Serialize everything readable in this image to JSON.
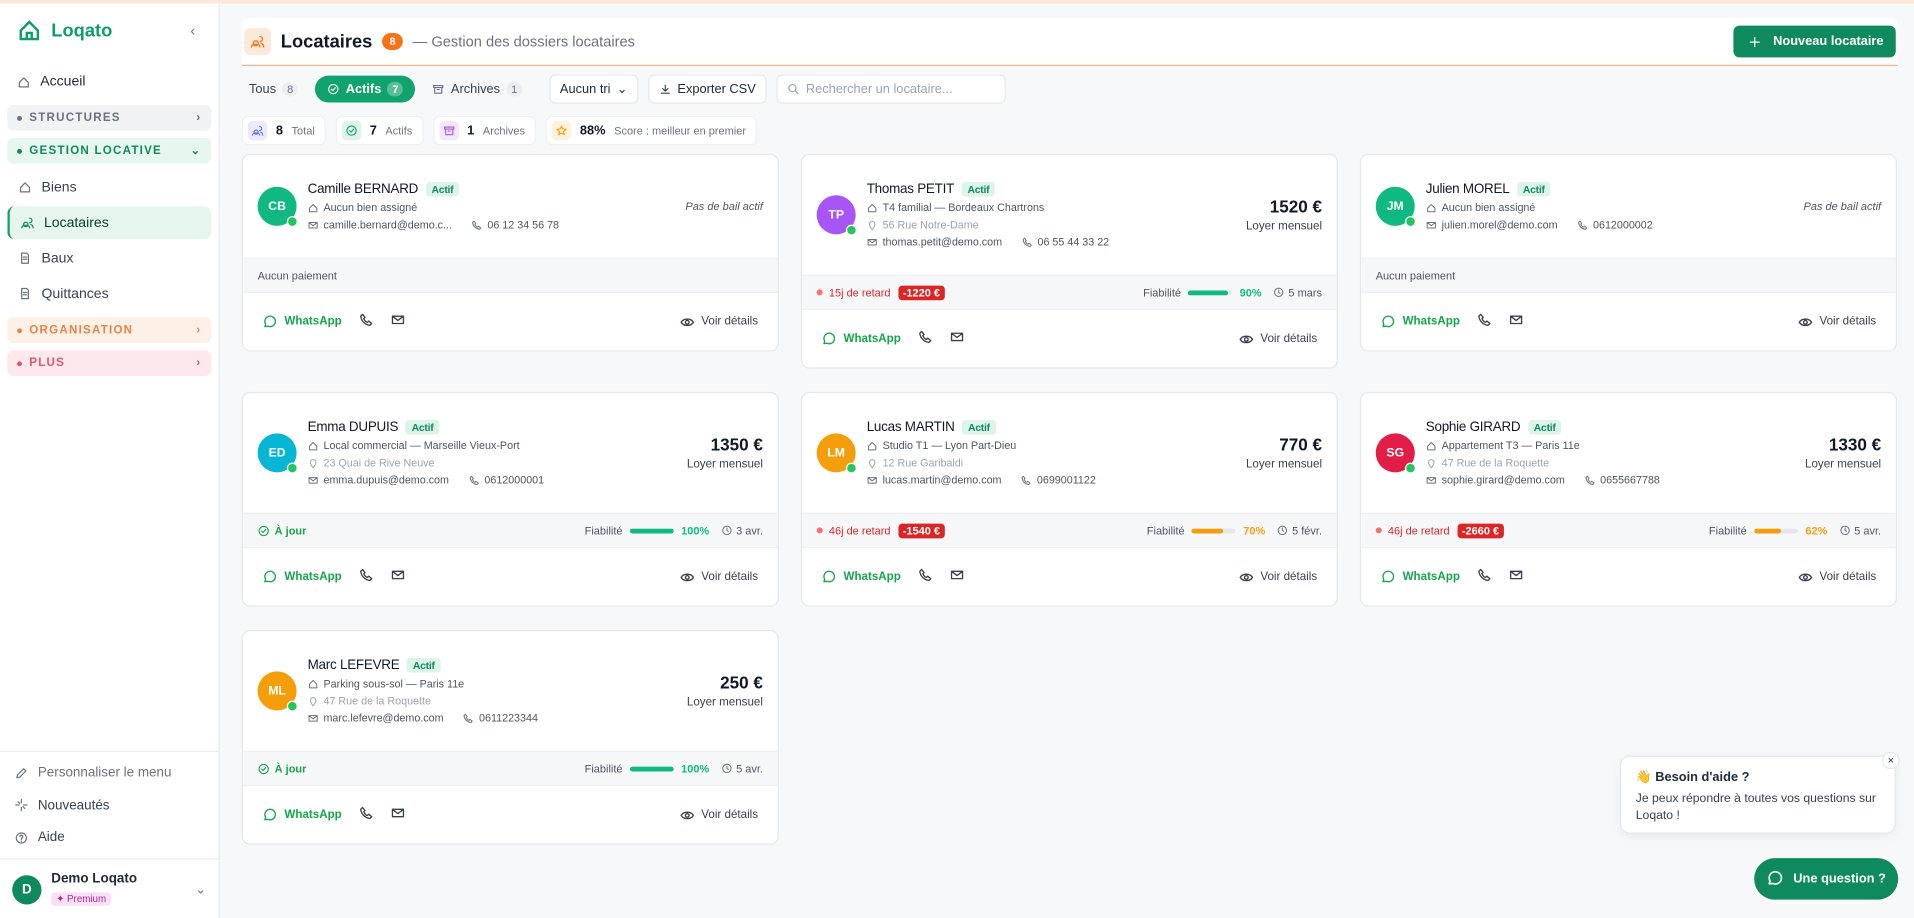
{
  "sidebar": {
    "brand": "Loqato",
    "home": "Accueil",
    "sections": [
      {
        "label": "STRUCTURES",
        "tone": "gray",
        "items": []
      },
      {
        "label": "GESTION LOCATIVE",
        "tone": "green",
        "items": [
          "Biens",
          "Locataires",
          "Baux",
          "Quittances"
        ],
        "active": 1
      },
      {
        "label": "ORGANISATION",
        "tone": "orange",
        "items": []
      },
      {
        "label": "PLUS",
        "tone": "pink",
        "items": []
      }
    ],
    "footer": [
      "Personnaliser le menu",
      "Nouveautés",
      "Aide"
    ],
    "user": {
      "avatar": "D",
      "name": "Demo Loqato",
      "plan": "✦ Premium"
    }
  },
  "header": {
    "title": "Locataires",
    "count": "8",
    "subtitle": "— Gestion des dossiers locataires",
    "new_button": "Nouveau locataire"
  },
  "tabs": [
    {
      "label": "Tous",
      "count": "8"
    },
    {
      "label": "Actifs",
      "count": "7",
      "active": true
    },
    {
      "label": "Archives",
      "count": "1"
    }
  ],
  "toolbar": {
    "sort": "Aucun tri",
    "export": "Exporter CSV",
    "search": "Rechercher un locataire..."
  },
  "stats": [
    {
      "value": "8",
      "label": "Total",
      "color": "#6366f1"
    },
    {
      "value": "7",
      "label": "Actifs",
      "color": "#10a36e"
    },
    {
      "value": "1",
      "label": "Archives",
      "color": "#a855f7"
    },
    {
      "value": "88%",
      "label": "Score : meilleur en premier",
      "color": "#f59e0b"
    }
  ],
  "labels": {
    "active": "Actif",
    "rent_caption": "Loyer mensuel",
    "no_lease": "Pas de bail actif",
    "no_payment": "Aucun paiement",
    "up_to_date": "À jour",
    "reliability": "Fiabilité",
    "whatsapp": "WhatsApp",
    "details": "Voir détails"
  },
  "tenants": [
    {
      "initials": "CB",
      "color": "#10b981",
      "name": "Camille BERNARD",
      "property": "Aucun bien assigné",
      "email": "camille.bernard@demo.c...",
      "phone": "06 12 34 56 78",
      "payment": {
        "state": "none"
      }
    },
    {
      "initials": "TP",
      "color": "#a855f7",
      "name": "Thomas PETIT",
      "property": "T4 familial — Bordeaux Chartrons",
      "address": "56 Rue Notre-Dame",
      "email": "thomas.petit@demo.com",
      "phone": "06 55 44 33 22",
      "rent": "1520 €",
      "payment": {
        "state": "late",
        "late": "15j de retard",
        "amount": "-1220 €",
        "reliability": "90%",
        "bar_color": "#10b981",
        "date": "5 mars"
      }
    },
    {
      "initials": "JM",
      "color": "#10b981",
      "name": "Julien MOREL",
      "property": "Aucun bien assigné",
      "email": "julien.morel@demo.com",
      "phone": "0612000002",
      "payment": {
        "state": "none"
      }
    },
    {
      "initials": "ED",
      "color": "#06b6d4",
      "name": "Emma DUPUIS",
      "property": "Local commercial — Marseille Vieux-Port",
      "address": "23 Quai de Rive Neuve",
      "email": "emma.dupuis@demo.com",
      "phone": "0612000001",
      "rent": "1350 €",
      "payment": {
        "state": "ok",
        "reliability": "100%",
        "bar_color": "#10b981",
        "date": "3 avr."
      }
    },
    {
      "initials": "LM",
      "color": "#f59e0b",
      "name": "Lucas MARTIN",
      "property": "Studio T1 — Lyon Part-Dieu",
      "address": "12 Rue Garibaldi",
      "email": "lucas.martin@demo.com",
      "phone": "0699001122",
      "rent": "770 €",
      "payment": {
        "state": "late",
        "late": "46j de retard",
        "amount": "-1540 €",
        "reliability": "70%",
        "bar_color": "#f59e0b",
        "date": "5 févr."
      }
    },
    {
      "initials": "SG",
      "color": "#e11d48",
      "name": "Sophie GIRARD",
      "property": "Appartement T3 — Paris 11e",
      "address": "47 Rue de la Roquette",
      "email": "sophie.girard@demo.com",
      "phone": "0655667788",
      "rent": "1330 €",
      "payment": {
        "state": "late",
        "late": "46j de retard",
        "amount": "-2660 €",
        "reliability": "62%",
        "bar_color": "#f59e0b",
        "date": "5 avr."
      }
    },
    {
      "initials": "ML",
      "color": "#f59e0b",
      "name": "Marc LEFEVRE",
      "property": "Parking sous-sol — Paris 11e",
      "address": "47 Rue de la Roquette",
      "email": "marc.lefevre@demo.com",
      "phone": "0611223344",
      "rent": "250 €",
      "payment": {
        "state": "ok",
        "reliability": "100%",
        "bar_color": "#10b981",
        "date": "5 avr."
      }
    }
  ],
  "help": {
    "title": "👋 Besoin d'aide ?",
    "body": "Je peux répondre à toutes vos questions sur Loqato !",
    "button": "Une question ?"
  }
}
